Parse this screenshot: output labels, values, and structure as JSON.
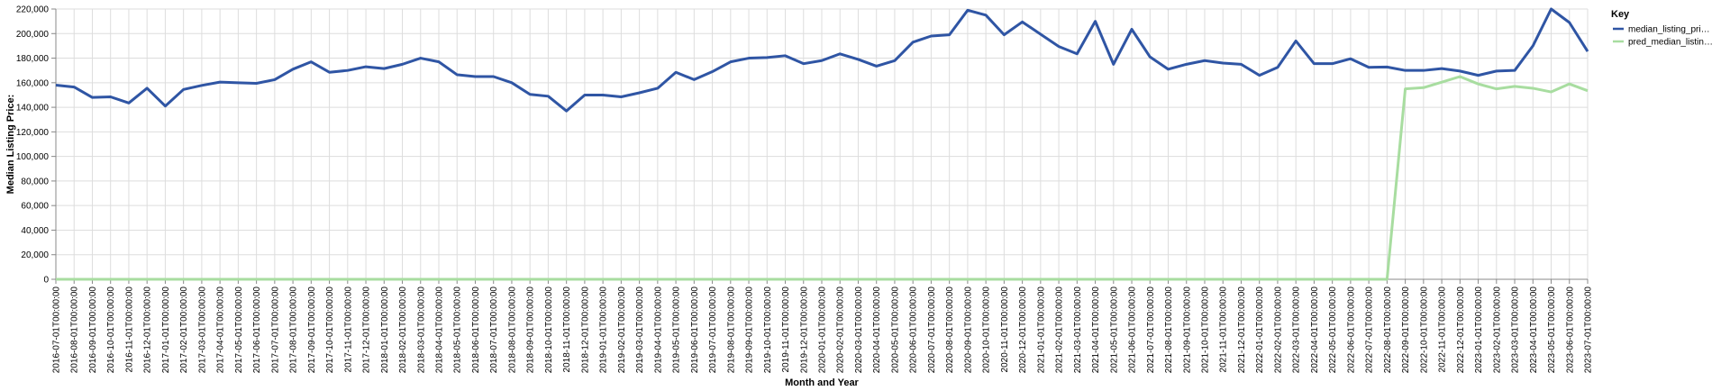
{
  "chart_data": {
    "type": "line",
    "xlabel": "Month and Year",
    "ylabel": "Median Listing Price:",
    "ylim": [
      0,
      220000
    ],
    "yticks": [
      0,
      20000,
      40000,
      60000,
      80000,
      100000,
      120000,
      140000,
      160000,
      180000,
      200000,
      220000
    ],
    "ytick_labels": [
      "0",
      "20,000",
      "40,000",
      "60,000",
      "80,000",
      "100,000",
      "120,000",
      "140,000",
      "160,000",
      "180,000",
      "200,000",
      "220,000"
    ],
    "grid": true,
    "legend": {
      "title": "Key",
      "placement": "top-right"
    },
    "x": [
      "2016-07-01T00:00:00",
      "2016-08-01T00:00:00",
      "2016-09-01T00:00:00",
      "2016-10-01T00:00:00",
      "2016-11-01T00:00:00",
      "2016-12-01T00:00:00",
      "2017-01-01T00:00:00",
      "2017-02-01T00:00:00",
      "2017-03-01T00:00:00",
      "2017-04-01T00:00:00",
      "2017-05-01T00:00:00",
      "2017-06-01T00:00:00",
      "2017-07-01T00:00:00",
      "2017-08-01T00:00:00",
      "2017-09-01T00:00:00",
      "2017-10-01T00:00:00",
      "2017-11-01T00:00:00",
      "2017-12-01T00:00:00",
      "2018-01-01T00:00:00",
      "2018-02-01T00:00:00",
      "2018-03-01T00:00:00",
      "2018-04-01T00:00:00",
      "2018-05-01T00:00:00",
      "2018-06-01T00:00:00",
      "2018-07-01T00:00:00",
      "2018-08-01T00:00:00",
      "2018-09-01T00:00:00",
      "2018-10-01T00:00:00",
      "2018-11-01T00:00:00",
      "2018-12-01T00:00:00",
      "2019-01-01T00:00:00",
      "2019-02-01T00:00:00",
      "2019-03-01T00:00:00",
      "2019-04-01T00:00:00",
      "2019-05-01T00:00:00",
      "2019-06-01T00:00:00",
      "2019-07-01T00:00:00",
      "2019-08-01T00:00:00",
      "2019-09-01T00:00:00",
      "2019-10-01T00:00:00",
      "2019-11-01T00:00:00",
      "2019-12-01T00:00:00",
      "2020-01-01T00:00:00",
      "2020-02-01T00:00:00",
      "2020-03-01T00:00:00",
      "2020-04-01T00:00:00",
      "2020-05-01T00:00:00",
      "2020-06-01T00:00:00",
      "2020-07-01T00:00:00",
      "2020-08-01T00:00:00",
      "2020-09-01T00:00:00",
      "2020-10-01T00:00:00",
      "2020-11-01T00:00:00",
      "2020-12-01T00:00:00",
      "2021-01-01T00:00:00",
      "2021-02-01T00:00:00",
      "2021-03-01T00:00:00",
      "2021-04-01T00:00:00",
      "2021-05-01T00:00:00",
      "2021-06-01T00:00:00",
      "2021-07-01T00:00:00",
      "2021-08-01T00:00:00",
      "2021-09-01T00:00:00",
      "2021-10-01T00:00:00",
      "2021-11-01T00:00:00",
      "2021-12-01T00:00:00",
      "2022-01-01T00:00:00",
      "2022-02-01T00:00:00",
      "2022-03-01T00:00:00",
      "2022-04-01T00:00:00",
      "2022-05-01T00:00:00",
      "2022-06-01T00:00:00",
      "2022-07-01T00:00:00",
      "2022-08-01T00:00:00",
      "2022-09-01T00:00:00",
      "2022-10-01T00:00:00",
      "2022-11-01T00:00:00",
      "2022-12-01T00:00:00",
      "2023-01-01T00:00:00",
      "2023-02-01T00:00:00",
      "2023-03-01T00:00:00",
      "2023-04-01T00:00:00",
      "2023-05-01T00:00:00",
      "2023-06-01T00:00:00",
      "2023-07-01T00:00:00"
    ],
    "series": [
      {
        "name": "median_listing_pri…",
        "color": "#2f55a4",
        "values": [
          158000,
          156500,
          148000,
          148500,
          143500,
          155500,
          141000,
          154500,
          157800,
          160500,
          160000,
          159500,
          162500,
          171000,
          177000,
          168500,
          170000,
          173000,
          171500,
          175000,
          180000,
          177000,
          166500,
          165000,
          165000,
          160000,
          150500,
          149000,
          137000,
          150000,
          150000,
          148500,
          151800,
          155500,
          168500,
          162500,
          169000,
          177000,
          180000,
          180500,
          182000,
          175500,
          178000,
          183500,
          179000,
          173500,
          178000,
          193000,
          198000,
          199000,
          219000,
          215000,
          199000,
          209500,
          199500,
          189500,
          183500,
          210000,
          175000,
          203500,
          181000,
          171000,
          175000,
          178000,
          176000,
          175000,
          166000,
          172500,
          194000,
          175500,
          175500,
          179500,
          172500,
          172800,
          170000,
          170000,
          171500,
          169500,
          166000,
          169500,
          170000,
          190000,
          220000,
          209000,
          185500
        ]
      },
      {
        "name": "pred_median_listin…",
        "color": "#a8dda0",
        "values": [
          0,
          0,
          0,
          0,
          0,
          0,
          0,
          0,
          0,
          0,
          0,
          0,
          0,
          0,
          0,
          0,
          0,
          0,
          0,
          0,
          0,
          0,
          0,
          0,
          0,
          0,
          0,
          0,
          0,
          0,
          0,
          0,
          0,
          0,
          0,
          0,
          0,
          0,
          0,
          0,
          0,
          0,
          0,
          0,
          0,
          0,
          0,
          0,
          0,
          0,
          0,
          0,
          0,
          0,
          0,
          0,
          0,
          0,
          0,
          0,
          0,
          0,
          0,
          0,
          0,
          0,
          0,
          0,
          0,
          0,
          0,
          0,
          0,
          0,
          155000,
          156000,
          160500,
          165000,
          159000,
          155000,
          157000,
          155500,
          152500,
          159000,
          153500
        ]
      }
    ]
  }
}
